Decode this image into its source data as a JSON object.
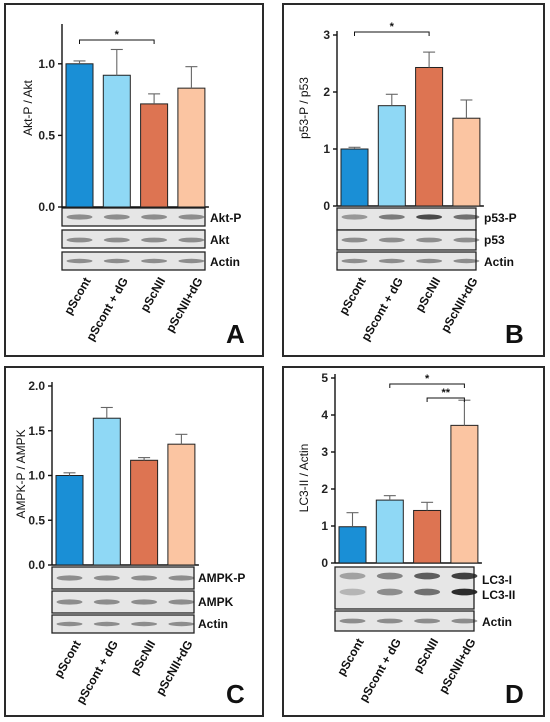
{
  "colors": [
    "#1a8fd6",
    "#8fd8f5",
    "#dd7452",
    "#fbc5a2"
  ],
  "categories": [
    "pScont",
    "pScont + dG",
    "pScNII",
    "pScNII+dG"
  ],
  "chart_data": [
    {
      "type": "bar",
      "panel": "A",
      "ylabel": "Akt-P / Akt",
      "ylim": [
        0,
        1.25
      ],
      "yticks": [
        "0.0",
        "0.5",
        "1.0"
      ],
      "tick_values": [
        0,
        0.5,
        1.0
      ],
      "categories": [
        "pScont",
        "pScont + dG",
        "pScNII",
        "pScNII+dG"
      ],
      "values": [
        1.0,
        0.92,
        0.72,
        0.83
      ],
      "errors": [
        0.02,
        0.18,
        0.07,
        0.15
      ],
      "significance": [
        {
          "from": 0,
          "to": 2,
          "label": "*"
        }
      ],
      "blots": [
        "Akt-P",
        "Akt",
        "Actin"
      ]
    },
    {
      "type": "bar",
      "panel": "B",
      "ylabel": "p53-P / p53",
      "ylim": [
        0,
        3.0
      ],
      "yticks": [
        "0",
        "1",
        "2",
        "3"
      ],
      "tick_values": [
        0,
        1,
        2,
        3
      ],
      "categories": [
        "pScont",
        "pScont + dG",
        "pScNII",
        "pScNII+dG"
      ],
      "values": [
        1.0,
        1.76,
        2.43,
        1.54
      ],
      "errors": [
        0.03,
        0.2,
        0.27,
        0.32
      ],
      "significance": [
        {
          "from": 0,
          "to": 2,
          "label": "*"
        }
      ],
      "blots": [
        "p53-P",
        "p53",
        "Actin"
      ]
    },
    {
      "type": "bar",
      "panel": "C",
      "ylabel": "AMPK-P / AMPK",
      "ylim": [
        0,
        2.0
      ],
      "yticks": [
        "0.0",
        "0.5",
        "1.0",
        "1.5",
        "2.0"
      ],
      "tick_values": [
        0,
        0.5,
        1.0,
        1.5,
        2.0
      ],
      "categories": [
        "pScont",
        "pScont + dG",
        "pScNII",
        "pScNII+dG"
      ],
      "values": [
        1.0,
        1.64,
        1.17,
        1.35
      ],
      "errors": [
        0.03,
        0.12,
        0.03,
        0.11
      ],
      "significance": [],
      "blots": [
        "AMPK-P",
        "AMPK",
        "Actin"
      ]
    },
    {
      "type": "bar",
      "panel": "D",
      "ylabel": "LC3-II / Actin",
      "ylim": [
        0,
        5.0
      ],
      "yticks": [
        "0",
        "1",
        "2",
        "3",
        "4",
        "5"
      ],
      "tick_values": [
        0,
        1,
        2,
        3,
        4,
        5
      ],
      "categories": [
        "pScont",
        "pScont + dG",
        "pScNII",
        "pScNII+dG"
      ],
      "values": [
        0.98,
        1.7,
        1.42,
        3.72
      ],
      "errors": [
        0.38,
        0.12,
        0.22,
        0.68
      ],
      "significance": [
        {
          "from": 1,
          "to": 3,
          "label": "*"
        },
        {
          "from": 2,
          "to": 3,
          "label": "**"
        }
      ],
      "blots": [
        "LC3-I",
        "LC3-II",
        "Actin"
      ]
    }
  ]
}
